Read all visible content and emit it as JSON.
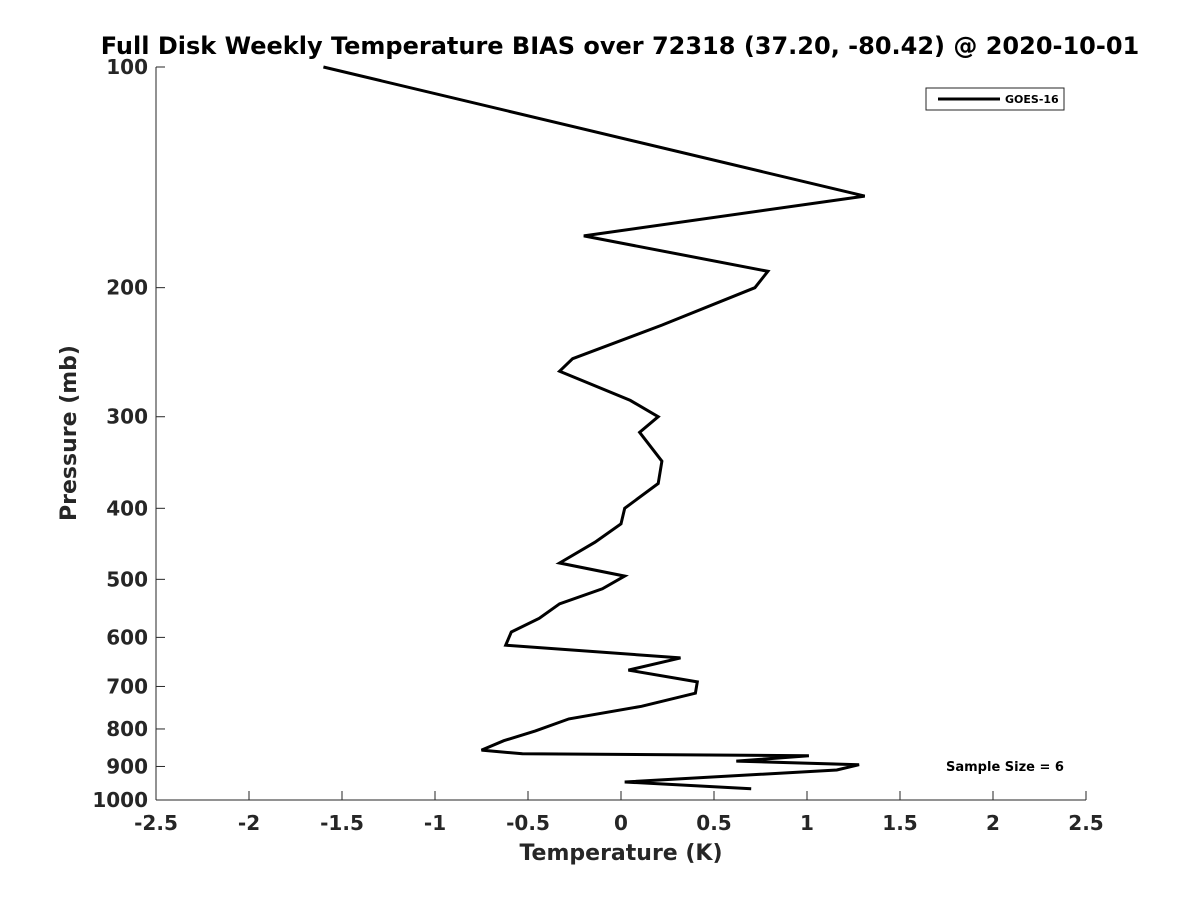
{
  "chart_data": {
    "type": "line",
    "title": "Full Disk Weekly Temperature BIAS over 72318 (37.20, -80.42) @ 2020-10-01",
    "xlabel": "Temperature (K)",
    "ylabel": "Pressure (mb)",
    "xlim": [
      -2.5,
      2.5
    ],
    "ylim": [
      100,
      1000
    ],
    "y_scale": "log",
    "y_reversed": true,
    "x_ticks": [
      "-2.5",
      "-2",
      "-1.5",
      "-1",
      "-0.5",
      "0",
      "0.5",
      "1",
      "1.5",
      "2",
      "2.5"
    ],
    "y_ticks": [
      "100",
      "200",
      "300",
      "400",
      "500",
      "600",
      "700",
      "800",
      "900",
      "1000"
    ],
    "grid": false,
    "legend_position": "top-right",
    "series": [
      {
        "name": "GOES-16",
        "color": "#000000",
        "x": [
          -1.6,
          1.31,
          -0.2,
          0.79,
          0.72,
          0.22,
          -0.26,
          -0.33,
          0.05,
          0.2,
          0.1,
          0.22,
          0.2,
          0.02,
          0.0,
          -0.14,
          -0.33,
          0.02,
          -0.1,
          -0.33,
          -0.44,
          -0.59,
          -0.62,
          0.32,
          0.04,
          0.41,
          0.4,
          0.11,
          -0.28,
          -0.46,
          -0.63,
          -0.75,
          -0.53,
          1.01,
          0.62,
          1.28,
          1.16,
          0.02,
          0.7
        ],
        "y": [
          100,
          150,
          170,
          190,
          200,
          225,
          250,
          260,
          285,
          300,
          315,
          345,
          370,
          400,
          420,
          445,
          475,
          495,
          515,
          540,
          565,
          590,
          615,
          640,
          665,
          690,
          715,
          745,
          775,
          805,
          830,
          855,
          865,
          870,
          885,
          895,
          910,
          945,
          965
        ]
      }
    ],
    "annotation": "Sample Size = 6"
  }
}
